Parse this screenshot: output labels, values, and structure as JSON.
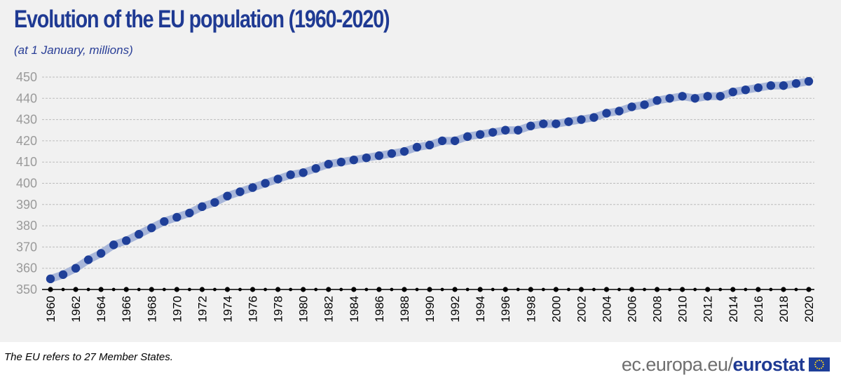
{
  "header": {
    "title": "Evolution of the EU population (1960-2020)",
    "subtitle": "(at 1 January, millions)"
  },
  "footnote": "The EU refers to 27 Member States.",
  "source": {
    "url_text": "ec.europa.eu/",
    "brand_text": "eurostat",
    "flag_icon": "eu-flag-icon"
  },
  "colors": {
    "panel_background": "#f1f1f1",
    "title": "#1f3a93",
    "marker": "#1f3f98",
    "line_halo": "#a8b6d9",
    "gridline": "#bcbcbc",
    "baseline": "#000000",
    "y_tick_text": "#9a9a9a"
  },
  "chart_data": {
    "type": "line",
    "title": "Evolution of the EU population (1960-2020)",
    "subtitle": "(at 1 January, millions)",
    "xlabel": "",
    "ylabel": "",
    "x": [
      1960,
      1961,
      1962,
      1963,
      1964,
      1965,
      1966,
      1967,
      1968,
      1969,
      1970,
      1971,
      1972,
      1973,
      1974,
      1975,
      1976,
      1977,
      1978,
      1979,
      1980,
      1981,
      1982,
      1983,
      1984,
      1985,
      1986,
      1987,
      1988,
      1989,
      1990,
      1991,
      1992,
      1993,
      1994,
      1995,
      1996,
      1997,
      1998,
      1999,
      2000,
      2001,
      2002,
      2003,
      2004,
      2005,
      2006,
      2007,
      2008,
      2009,
      2010,
      2011,
      2012,
      2013,
      2014,
      2015,
      2016,
      2017,
      2018,
      2019,
      2020
    ],
    "series": [
      {
        "values": [
          355,
          357,
          360,
          364,
          367,
          371,
          373,
          376,
          379,
          382,
          384,
          386,
          389,
          391,
          394,
          396,
          398,
          400,
          402,
          404,
          405,
          407,
          409,
          410,
          411,
          412,
          413,
          414,
          415,
          417,
          418,
          420,
          420,
          422,
          423,
          424,
          425,
          425,
          427,
          428,
          428,
          429,
          430,
          431,
          433,
          434,
          436,
          437,
          439,
          440,
          441,
          440,
          441,
          441,
          443,
          444,
          445,
          446,
          446,
          447,
          448
        ]
      }
    ],
    "x_tick_labels": [
      "1960",
      "1962",
      "1964",
      "1966",
      "1968",
      "1970",
      "1972",
      "1974",
      "1976",
      "1978",
      "1980",
      "1982",
      "1984",
      "1986",
      "1988",
      "1990",
      "1992",
      "1994",
      "1996",
      "1998",
      "2000",
      "2002",
      "2004",
      "2006",
      "2008",
      "2010",
      "2012",
      "2014",
      "2016",
      "2018",
      "2020"
    ],
    "y_tick_labels": [
      "350",
      "360",
      "370",
      "380",
      "390",
      "400",
      "410",
      "420",
      "430",
      "440",
      "450"
    ],
    "ylim": [
      350,
      450
    ],
    "xlim": [
      1960,
      2020
    ],
    "grid": "horizontal dashed",
    "legend": "none"
  }
}
